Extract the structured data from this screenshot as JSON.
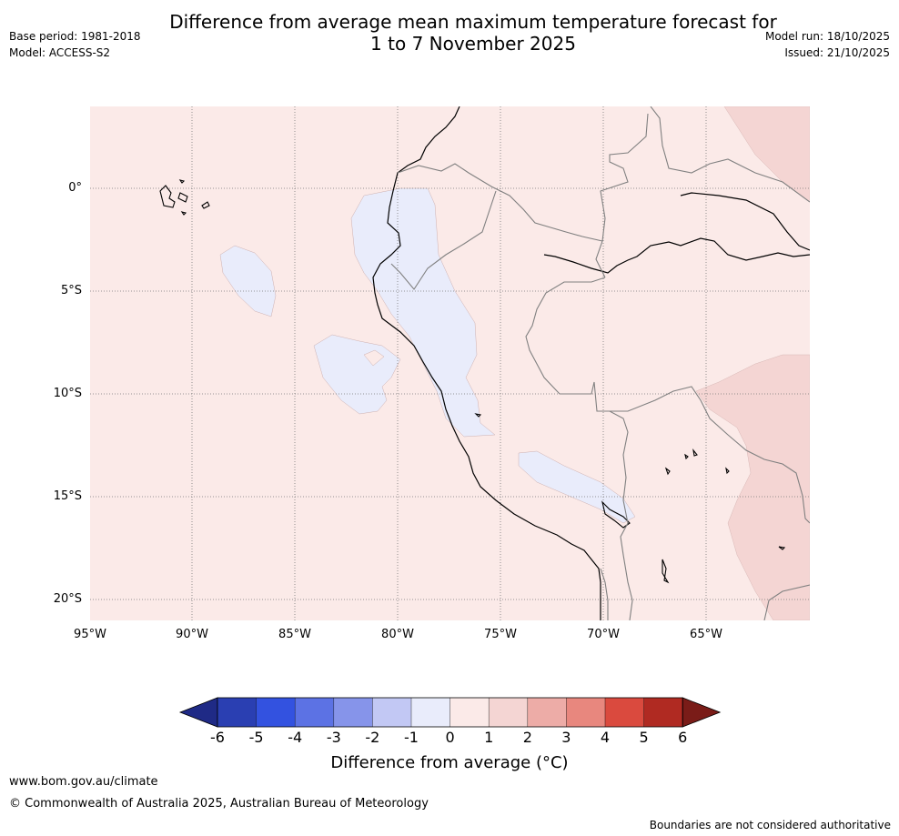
{
  "title": {
    "line1": "Difference from average mean maximum temperature forecast for",
    "line2": "1 to 7 November 2025"
  },
  "meta": {
    "base_period": "Base period: 1981-2018",
    "model": "Model: ACCESS-S2",
    "model_run": "Model run: 18/10/2025",
    "issued": "Issued: 21/10/2025"
  },
  "map": {
    "lat_labels": [
      "0°",
      "5°S",
      "10°S",
      "15°S",
      "20°S"
    ],
    "lon_labels": [
      "95°W",
      "90°W",
      "85°W",
      "80°W",
      "75°W",
      "70°W",
      "65°W"
    ]
  },
  "colorbar": {
    "ticks": [
      "-6",
      "-5",
      "-4",
      "-3",
      "-2",
      "-1",
      "0",
      "1",
      "2",
      "3",
      "4",
      "5",
      "6"
    ],
    "colors": [
      "#1f2a86",
      "#2a3fb2",
      "#3352e0",
      "#5c72e4",
      "#8694ea",
      "#c2c8f4",
      "#e9ecfb",
      "#fbeae8",
      "#f4d5d3",
      "#edaca7",
      "#e8877e",
      "#da4a3e",
      "#b02a22",
      "#7a1c18"
    ],
    "label": "Difference from average (°C)"
  },
  "footer": {
    "website": "www.bom.gov.au/climate",
    "copyright": "© Commonwealth of Australia 2025, Australian Bureau of Meteorology",
    "disclaimer": "Boundaries are not considered authoritative"
  }
}
